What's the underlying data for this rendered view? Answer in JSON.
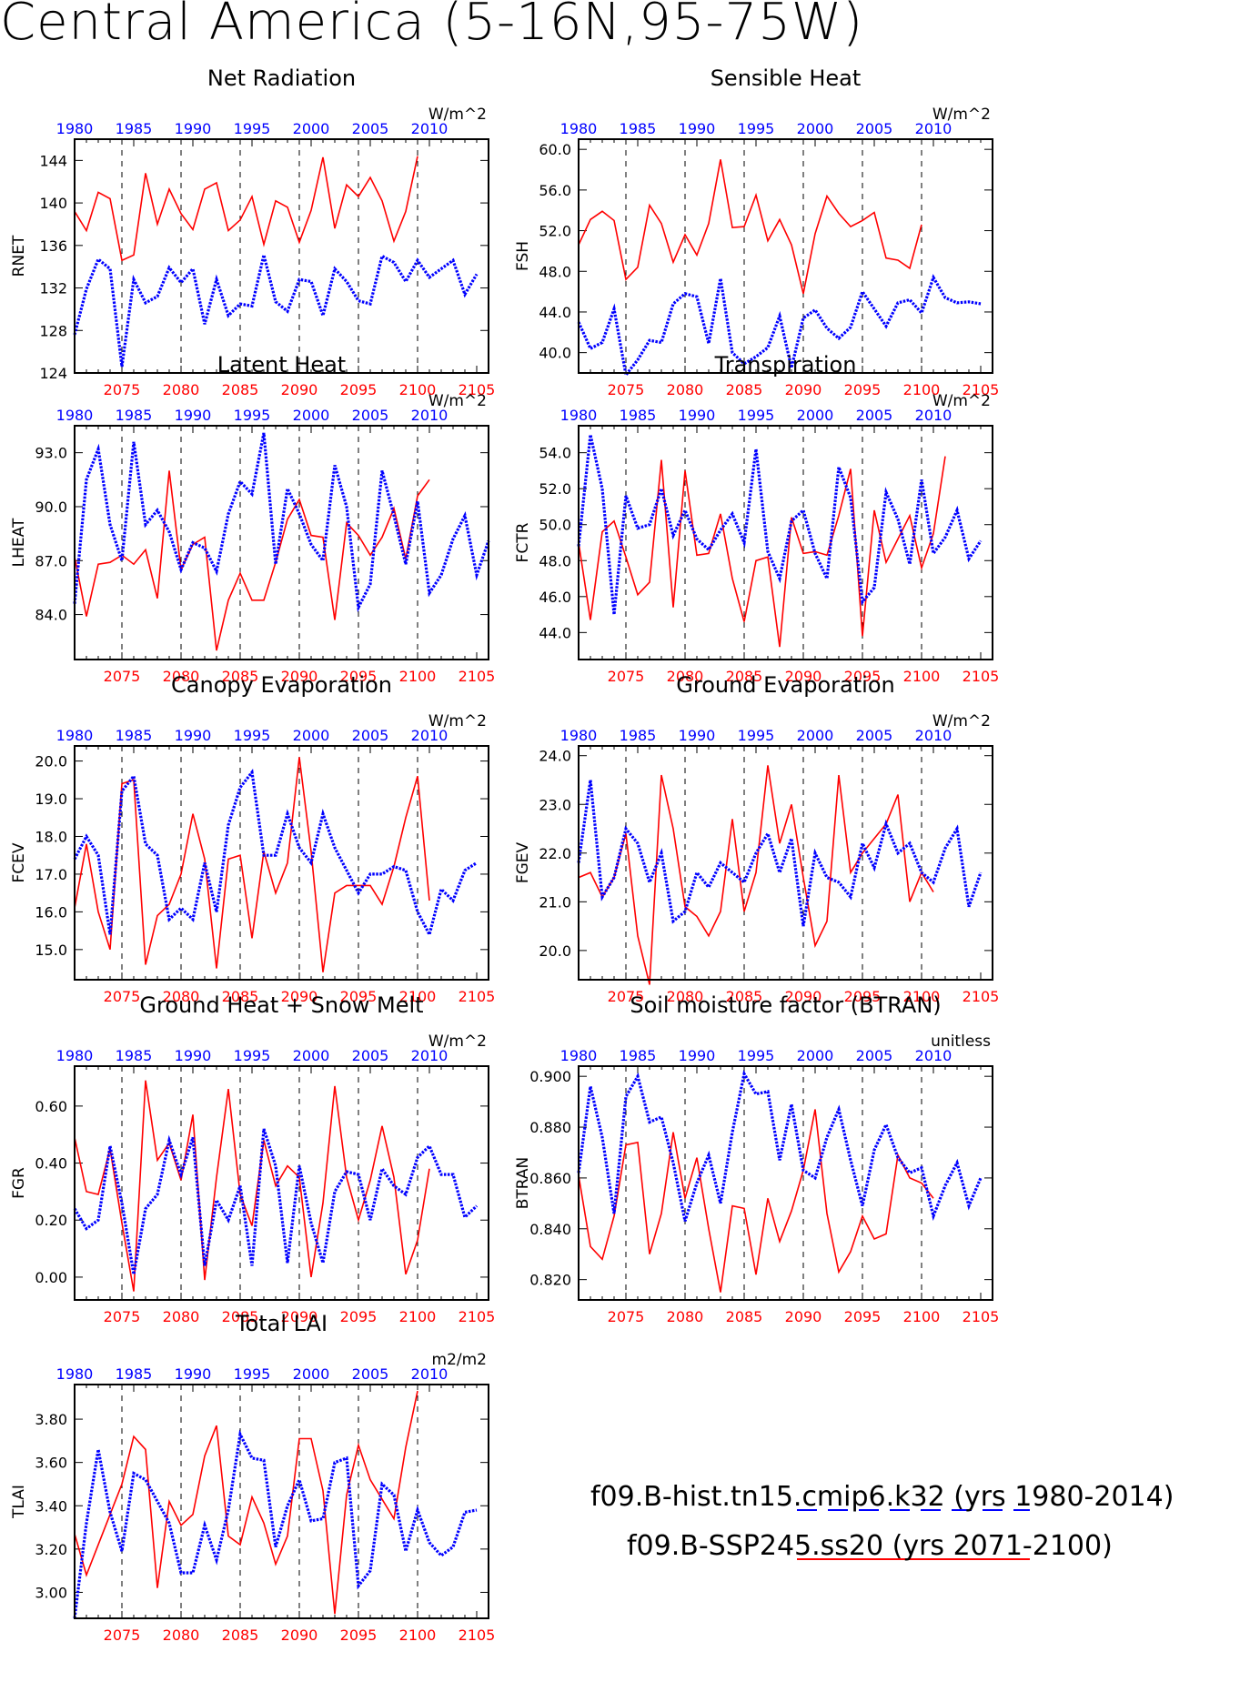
{
  "page_title": "Central America (5-16N,95-75W)",
  "colors": {
    "hist": "#0000ff",
    "ssp": "#ff0000",
    "axis": "#000000"
  },
  "top_axis_labels": [
    "1980",
    "1985",
    "1990",
    "1995",
    "2000",
    "2005",
    "2010"
  ],
  "bottom_axis_labels": [
    "2075",
    "2080",
    "2085",
    "2090",
    "2095",
    "2100",
    "2105"
  ],
  "legend": {
    "hist": "f09.B-hist.tn15.cmip6.k32 (yrs 1980-2014)",
    "ssp": "f09.B-SSP245.ss20 (yrs 2071-2100)"
  },
  "chart_data": [
    {
      "type": "line",
      "title": "Net Radiation",
      "ylabel": "RNET",
      "units": "W/m^2",
      "ylim": [
        124,
        146
      ],
      "yticks": [
        "124",
        "128",
        "132",
        "136",
        "140",
        "144"
      ],
      "series": [
        {
          "values": [
            139.2,
            137.4,
            141.0,
            140.4,
            134.6,
            135.1,
            142.8,
            138.0,
            141.3,
            139.0,
            137.5,
            141.3,
            141.9,
            137.4,
            138.4,
            140.6,
            136.1,
            140.2,
            139.6,
            136.3,
            139.3,
            144.3,
            137.6,
            141.7,
            140.6,
            142.4,
            140.2,
            136.4,
            139.2,
            144.4
          ]
        },
        {
          "values": [
            127.6,
            131.9,
            134.7,
            133.8,
            124.6,
            132.8,
            130.6,
            131.2,
            133.9,
            132.5,
            133.8,
            128.6,
            132.8,
            129.4,
            130.5,
            130.3,
            135.1,
            130.7,
            129.8,
            132.8,
            132.6,
            129.4,
            133.8,
            132.6,
            130.8,
            130.5,
            135.0,
            134.4,
            132.6,
            134.6,
            133.0,
            133.8,
            134.6,
            131.4,
            133.3
          ]
        }
      ]
    },
    {
      "type": "line",
      "title": "Sensible Heat",
      "ylabel": "FSH",
      "units": "W/m^2",
      "ylim": [
        38,
        61
      ],
      "yticks": [
        "40.0",
        "44.0",
        "48.0",
        "52.0",
        "56.0",
        "60.0"
      ],
      "series": [
        {
          "values": [
            50.6,
            53.1,
            53.9,
            53.0,
            47.2,
            48.4,
            54.5,
            52.7,
            48.9,
            51.6,
            49.6,
            52.7,
            59.0,
            52.3,
            52.4,
            55.5,
            51.0,
            53.1,
            50.6,
            45.8,
            51.7,
            55.4,
            53.7,
            52.4,
            53.0,
            53.8,
            49.3,
            49.1,
            48.3,
            52.6
          ]
        },
        {
          "values": [
            43.0,
            40.4,
            41.0,
            44.3,
            37.8,
            39.3,
            41.2,
            41.0,
            44.8,
            45.8,
            45.5,
            40.9,
            47.3,
            40.0,
            38.9,
            39.6,
            40.5,
            43.6,
            38.5,
            43.4,
            44.2,
            42.4,
            41.4,
            42.5,
            46.0,
            44.3,
            42.6,
            44.9,
            45.2,
            43.9,
            47.4,
            45.4,
            44.9,
            45.0,
            44.8
          ]
        }
      ]
    },
    {
      "type": "line",
      "title": "Latent Heat",
      "ylabel": "LHEAT",
      "units": "W/m^2",
      "ylim": [
        81.5,
        94.5
      ],
      "yticks": [
        "84.0",
        "87.0",
        "90.0",
        "93.0"
      ],
      "series": [
        {
          "values": [
            87.2,
            83.9,
            86.8,
            86.9,
            87.3,
            86.8,
            87.6,
            84.9,
            92.0,
            86.5,
            87.9,
            88.3,
            82.0,
            84.8,
            86.3,
            84.8,
            84.8,
            86.9,
            89.3,
            90.4,
            88.4,
            88.3,
            83.7,
            89.1,
            88.4,
            87.3,
            88.3,
            89.9,
            87.1,
            90.6,
            91.5
          ]
        },
        {
          "values": [
            84.6,
            91.5,
            93.2,
            89.0,
            87.0,
            93.6,
            89.0,
            89.8,
            88.6,
            86.5,
            88.0,
            87.7,
            86.4,
            89.6,
            91.4,
            90.7,
            94.1,
            86.8,
            91.0,
            89.6,
            87.9,
            87.0,
            92.3,
            90.0,
            84.4,
            85.7,
            92.0,
            89.5,
            86.8,
            90.3,
            85.2,
            86.2,
            88.2,
            89.5,
            86.2,
            88.1
          ]
        }
      ]
    },
    {
      "type": "line",
      "title": "Transpiration",
      "ylabel": "FCTR",
      "units": "W/m^2",
      "ylim": [
        42.5,
        55.5
      ],
      "yticks": [
        "44.0",
        "46.0",
        "48.0",
        "50.0",
        "52.0",
        "54.0"
      ],
      "series": [
        {
          "values": [
            49.0,
            44.7,
            49.6,
            50.2,
            48.2,
            46.1,
            46.8,
            53.6,
            45.4,
            53.0,
            48.3,
            48.4,
            50.6,
            47.0,
            44.6,
            48.0,
            48.2,
            43.2,
            50.4,
            48.4,
            48.5,
            48.3,
            50.5,
            53.1,
            43.8,
            50.8,
            47.9,
            49.2,
            50.5,
            47.6,
            49.5,
            53.8
          ]
        },
        {
          "values": [
            48.8,
            55.0,
            52.0,
            45.0,
            51.6,
            49.8,
            50.0,
            52.0,
            49.4,
            50.8,
            49.2,
            48.6,
            49.7,
            50.6,
            49.0,
            54.2,
            48.5,
            47.0,
            50.2,
            50.8,
            48.4,
            47.0,
            53.2,
            51.5,
            45.7,
            46.5,
            51.8,
            50.3,
            47.8,
            52.5,
            48.4,
            49.3,
            50.8,
            48.1,
            49.1
          ]
        }
      ]
    },
    {
      "type": "line",
      "title": "Canopy Evaporation",
      "ylabel": "FCEV",
      "units": "W/m^2",
      "ylim": [
        14.2,
        20.4
      ],
      "yticks": [
        "15.0",
        "16.0",
        "17.0",
        "18.0",
        "19.0",
        "20.0"
      ],
      "series": [
        {
          "values": [
            16.1,
            17.8,
            16.0,
            15.0,
            19.4,
            19.5,
            14.6,
            15.9,
            16.2,
            17.0,
            18.6,
            17.4,
            14.5,
            17.4,
            17.5,
            15.3,
            17.6,
            16.5,
            17.3,
            20.1,
            17.6,
            14.4,
            16.5,
            16.7,
            16.7,
            16.7,
            16.2,
            17.2,
            18.5,
            19.6,
            16.3
          ]
        },
        {
          "values": [
            17.4,
            18.0,
            17.5,
            15.4,
            19.2,
            19.6,
            17.8,
            17.5,
            15.8,
            16.1,
            15.8,
            17.3,
            16.0,
            18.3,
            19.3,
            19.7,
            17.5,
            17.5,
            18.6,
            17.7,
            17.3,
            18.6,
            17.7,
            17.1,
            16.5,
            17.0,
            17.0,
            17.2,
            17.1,
            16.0,
            15.4,
            16.6,
            16.3,
            17.1,
            17.3
          ]
        }
      ]
    },
    {
      "type": "line",
      "title": "Ground Evaporation",
      "ylabel": "FGEV",
      "units": "W/m^2",
      "ylim": [
        19.4,
        24.2
      ],
      "yticks": [
        "20.0",
        "21.0",
        "22.0",
        "23.0",
        "24.0"
      ],
      "series": [
        {
          "values": [
            21.5,
            21.6,
            21.1,
            21.5,
            22.4,
            20.3,
            19.3,
            23.6,
            22.5,
            20.9,
            20.7,
            20.3,
            20.8,
            22.7,
            20.8,
            21.6,
            23.8,
            22.2,
            23.0,
            21.5,
            20.1,
            20.6,
            23.6,
            21.6,
            22.0,
            22.3,
            22.6,
            23.2,
            21.0,
            21.6,
            21.2
          ]
        },
        {
          "values": [
            21.8,
            23.5,
            21.1,
            21.5,
            22.5,
            22.2,
            21.4,
            22.0,
            20.6,
            20.8,
            21.6,
            21.3,
            21.8,
            21.6,
            21.4,
            22.0,
            22.4,
            21.6,
            22.3,
            20.5,
            22.0,
            21.5,
            21.4,
            21.1,
            22.2,
            21.7,
            22.6,
            22.0,
            22.2,
            21.6,
            21.4,
            22.1,
            22.5,
            20.9,
            21.6
          ]
        }
      ]
    },
    {
      "type": "line",
      "title": "Ground Heat + Snow Melt",
      "ylabel": "FGR",
      "units": "W/m^2",
      "ylim": [
        -0.08,
        0.74
      ],
      "yticks": [
        "0.00",
        "0.20",
        "0.40",
        "0.60"
      ],
      "series": [
        {
          "values": [
            0.49,
            0.3,
            0.29,
            0.45,
            0.19,
            -0.05,
            0.69,
            0.41,
            0.47,
            0.34,
            0.57,
            -0.01,
            0.35,
            0.66,
            0.29,
            0.18,
            0.48,
            0.32,
            0.39,
            0.35,
            0.0,
            0.26,
            0.67,
            0.35,
            0.2,
            0.34,
            0.53,
            0.35,
            0.01,
            0.13,
            0.38
          ]
        },
        {
          "values": [
            0.24,
            0.17,
            0.2,
            0.46,
            0.26,
            0.01,
            0.24,
            0.29,
            0.48,
            0.36,
            0.49,
            0.04,
            0.27,
            0.2,
            0.32,
            0.04,
            0.52,
            0.39,
            0.05,
            0.39,
            0.19,
            0.05,
            0.3,
            0.37,
            0.36,
            0.2,
            0.38,
            0.32,
            0.29,
            0.42,
            0.46,
            0.36,
            0.36,
            0.21,
            0.25
          ]
        }
      ]
    },
    {
      "type": "line",
      "title": "Soil moisture factor (BTRAN)",
      "ylabel": "BTRAN",
      "units": "unitless",
      "ylim": [
        0.812,
        0.904
      ],
      "yticks": [
        "0.820",
        "0.840",
        "0.860",
        "0.880",
        "0.900"
      ],
      "series": [
        {
          "values": [
            0.861,
            0.833,
            0.828,
            0.845,
            0.873,
            0.874,
            0.83,
            0.846,
            0.878,
            0.852,
            0.868,
            0.84,
            0.815,
            0.849,
            0.848,
            0.822,
            0.852,
            0.835,
            0.847,
            0.863,
            0.887,
            0.846,
            0.823,
            0.831,
            0.845,
            0.836,
            0.838,
            0.869,
            0.86,
            0.858,
            0.852
          ]
        },
        {
          "values": [
            0.862,
            0.896,
            0.876,
            0.846,
            0.892,
            0.9,
            0.882,
            0.884,
            0.866,
            0.843,
            0.858,
            0.869,
            0.85,
            0.878,
            0.901,
            0.893,
            0.894,
            0.867,
            0.889,
            0.863,
            0.86,
            0.876,
            0.887,
            0.867,
            0.849,
            0.871,
            0.881,
            0.868,
            0.862,
            0.864,
            0.845,
            0.857,
            0.866,
            0.849,
            0.86
          ]
        }
      ]
    },
    {
      "type": "line",
      "title": "Total LAI",
      "ylabel": "TLAI",
      "units": "m2/m2",
      "ylim": [
        2.88,
        3.96
      ],
      "yticks": [
        "3.00",
        "3.20",
        "3.40",
        "3.60",
        "3.80"
      ],
      "series": [
        {
          "values": [
            3.27,
            3.08,
            3.22,
            3.36,
            3.5,
            3.72,
            3.66,
            3.02,
            3.42,
            3.31,
            3.36,
            3.63,
            3.77,
            3.26,
            3.22,
            3.44,
            3.32,
            3.13,
            3.26,
            3.71,
            3.71,
            3.47,
            2.9,
            3.45,
            3.68,
            3.52,
            3.43,
            3.34,
            3.67,
            3.93
          ]
        },
        {
          "values": [
            2.88,
            3.32,
            3.66,
            3.37,
            3.19,
            3.55,
            3.52,
            3.42,
            3.32,
            3.09,
            3.09,
            3.31,
            3.15,
            3.38,
            3.73,
            3.62,
            3.61,
            3.21,
            3.4,
            3.52,
            3.33,
            3.34,
            3.6,
            3.62,
            3.03,
            3.1,
            3.5,
            3.45,
            3.19,
            3.38,
            3.23,
            3.17,
            3.21,
            3.37,
            3.38
          ]
        }
      ]
    }
  ]
}
